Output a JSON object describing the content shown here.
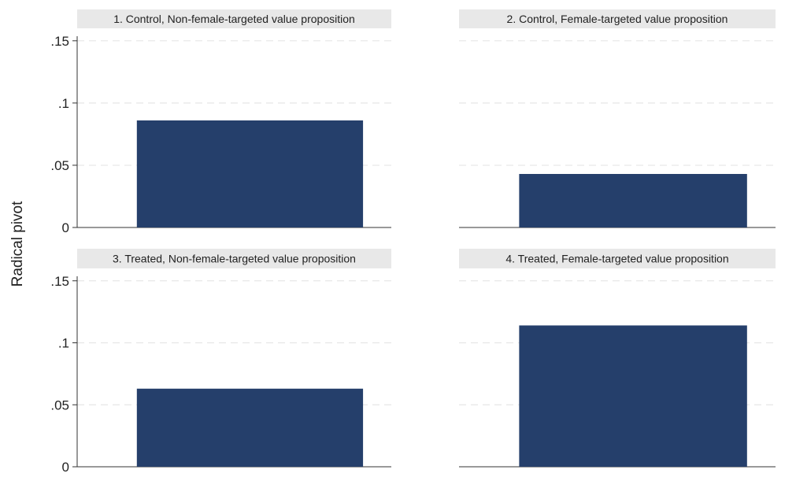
{
  "chart_data": {
    "type": "bar",
    "ylabel": "Radical pivot",
    "ylim": [
      0,
      0.16
    ],
    "yticks": [
      {
        "value": 0,
        "label": "0"
      },
      {
        "value": 0.05,
        "label": ".05"
      },
      {
        "value": 0.1,
        "label": ".1"
      },
      {
        "value": 0.15,
        "label": ".15"
      }
    ],
    "grid": true,
    "bar_color": "#253f6b",
    "panel_header_color": "#e8e8e8",
    "grid_color": "#e6e6e6",
    "panels": [
      {
        "title": "1. Control, Non-female-targeted value proposition",
        "value": 0.086
      },
      {
        "title": "2. Control, Female-targeted value proposition",
        "value": 0.043
      },
      {
        "title": "3. Treated, Non-female-targeted value proposition",
        "value": 0.063
      },
      {
        "title": "4. Treated, Female-targeted value proposition",
        "value": 0.114
      }
    ]
  }
}
